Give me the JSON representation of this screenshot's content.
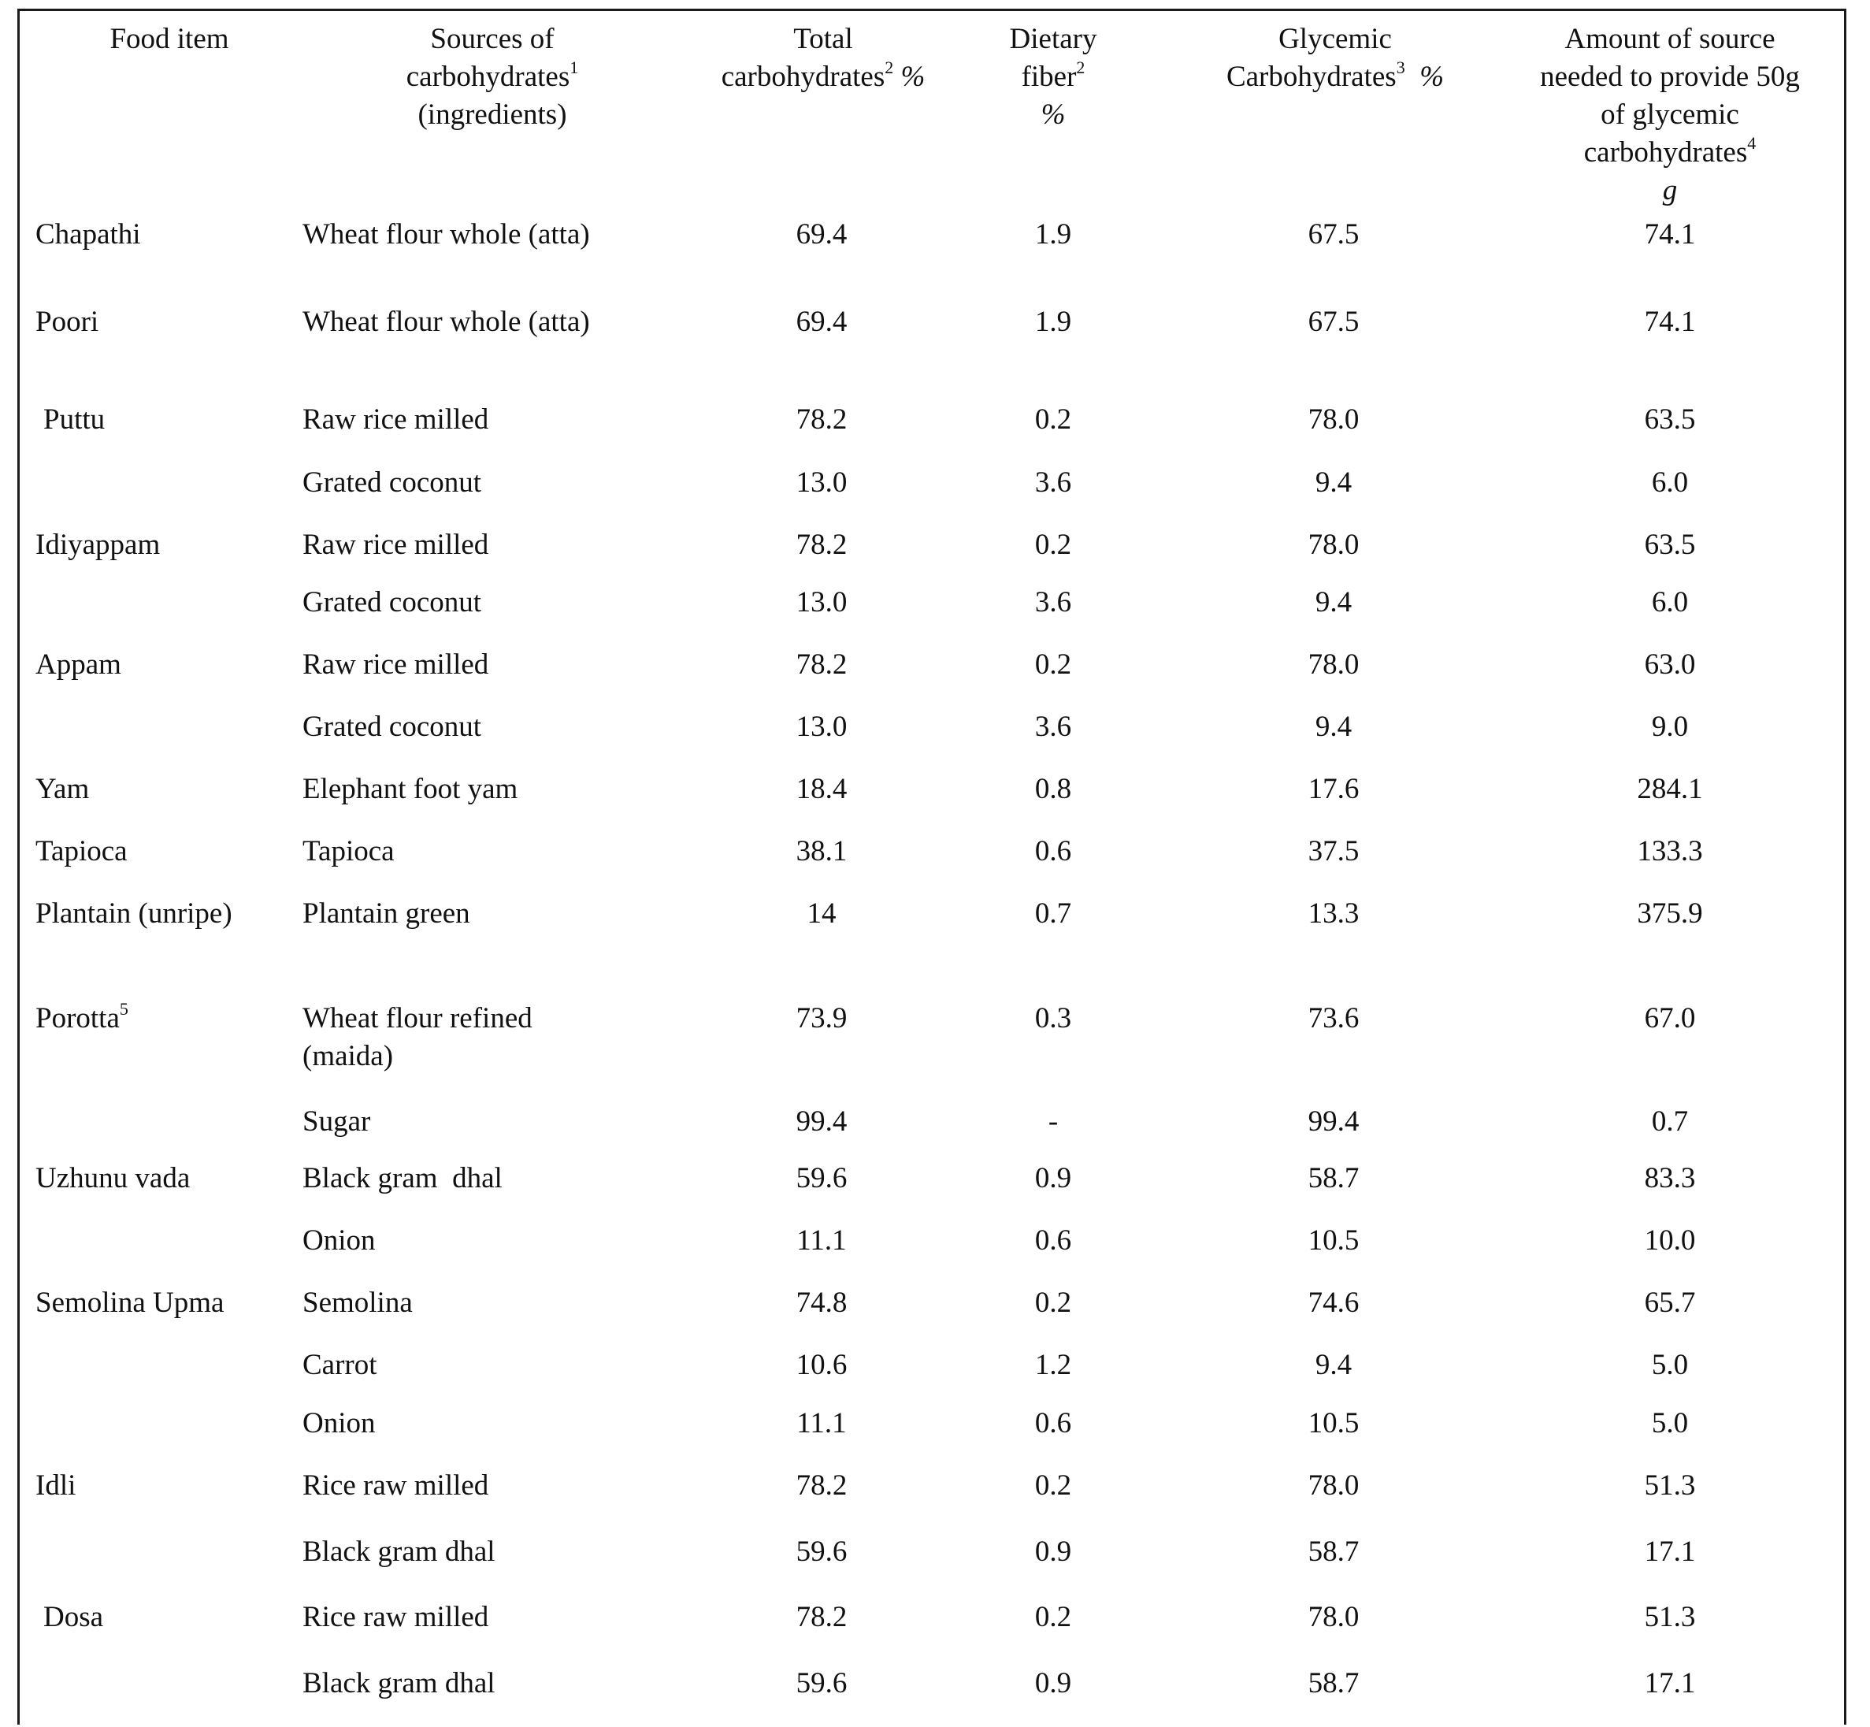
{
  "headers": {
    "food": [
      "Food item"
    ],
    "source": {
      "l1": "Sources of",
      "l2": "carbohydrates",
      "l2_sup": "1",
      "l3": "(ingredients)"
    },
    "total": {
      "l1": "Total",
      "l2": "carbohydrates",
      "l2_sup": "2",
      "l2_unit": "%"
    },
    "fiber": {
      "l1": "Dietary",
      "l2": "fiber",
      "l2_sup": "2",
      "l3": "%"
    },
    "glycemic": {
      "l1": "Glycemic",
      "l2": "Carbohydrates",
      "l2_sup": "3",
      "l2_unit": "%"
    },
    "amount": {
      "l1": "Amount of source",
      "l2": "needed to provide 50g",
      "l3": "of glycemic",
      "l4": "carbohydrates",
      "l4_sup": "4",
      "l5": "g"
    }
  },
  "rows": [
    {
      "food": "Chapathi",
      "source": "Wheat flour whole (atta)",
      "total": "69.4",
      "fiber": "1.9",
      "glycemic": "67.5",
      "amount": "74.1"
    },
    {
      "food": "Poori",
      "source": "Wheat flour whole (atta)",
      "total": "69.4",
      "fiber": "1.9",
      "glycemic": "67.5",
      "amount": "74.1"
    },
    {
      "food": "Puttu",
      "source": "Raw rice milled",
      "total": "78.2",
      "fiber": "0.2",
      "glycemic": "78.0",
      "amount": "63.5"
    },
    {
      "food": "",
      "source": "Grated coconut",
      "total": "13.0",
      "fiber": "3.6",
      "glycemic": "9.4",
      "amount": "6.0"
    },
    {
      "food": "Idiyappam",
      "source": "Raw rice milled",
      "total": "78.2",
      "fiber": "0.2",
      "glycemic": "78.0",
      "amount": "63.5"
    },
    {
      "food": "",
      "source": "Grated coconut",
      "total": "13.0",
      "fiber": "3.6",
      "glycemic": "9.4",
      "amount": "6.0"
    },
    {
      "food": "Appam",
      "source": "Raw rice milled",
      "total": "78.2",
      "fiber": "0.2",
      "glycemic": "78.0",
      "amount": "63.0"
    },
    {
      "food": "",
      "source": "Grated coconut",
      "total": "13.0",
      "fiber": "3.6",
      "glycemic": "9.4",
      "amount": "9.0"
    },
    {
      "food": "Yam",
      "source": "Elephant foot yam",
      "total": "18.4",
      "fiber": "0.8",
      "glycemic": "17.6",
      "amount": "284.1"
    },
    {
      "food": "Tapioca",
      "source": "Tapioca",
      "total": "38.1",
      "fiber": "0.6",
      "glycemic": "37.5",
      "amount": "133.3"
    },
    {
      "food": "Plantain (unripe)",
      "source": "Plantain green",
      "total": "14",
      "fiber": "0.7",
      "glycemic": "13.3",
      "amount": "375.9"
    },
    {
      "food": "Porotta",
      "food_sup": "5",
      "source": "Wheat flour refined (maida)",
      "total": "73.9",
      "fiber": "0.3",
      "glycemic": "73.6",
      "amount": "67.0"
    },
    {
      "food": "",
      "source": "Sugar",
      "total": "99.4",
      "fiber": "-",
      "glycemic": "99.4",
      "amount": "0.7"
    },
    {
      "food": "Uzhunu vada",
      "source": "Black gram  dhal",
      "total": "59.6",
      "fiber": "0.9",
      "glycemic": "58.7",
      "amount": "83.3"
    },
    {
      "food": "",
      "source": "Onion",
      "total": "11.1",
      "fiber": "0.6",
      "glycemic": "10.5",
      "amount": "10.0"
    },
    {
      "food": "Semolina Upma",
      "source": "Semolina",
      "total": "74.8",
      "fiber": "0.2",
      "glycemic": "74.6",
      "amount": "65.7"
    },
    {
      "food": "",
      "source": "Carrot",
      "total": "10.6",
      "fiber": "1.2",
      "glycemic": "9.4",
      "amount": "5.0"
    },
    {
      "food": "",
      "source": "Onion",
      "total": "11.1",
      "fiber": "0.6",
      "glycemic": "10.5",
      "amount": "5.0"
    },
    {
      "food": "Idli",
      "source": "Rice raw milled",
      "total": "78.2",
      "fiber": "0.2",
      "glycemic": "78.0",
      "amount": "51.3"
    },
    {
      "food": "",
      "source": "Black gram dhal",
      "total": "59.6",
      "fiber": "0.9",
      "glycemic": "58.7",
      "amount": "17.1"
    },
    {
      "food": "Dosa",
      "source": "Rice raw milled",
      "total": "78.2",
      "fiber": "0.2",
      "glycemic": "78.0",
      "amount": "51.3"
    },
    {
      "food": "",
      "source": "Black gram dhal",
      "total": "59.6",
      "fiber": "0.9",
      "glycemic": "58.7",
      "amount": "17.1"
    }
  ]
}
